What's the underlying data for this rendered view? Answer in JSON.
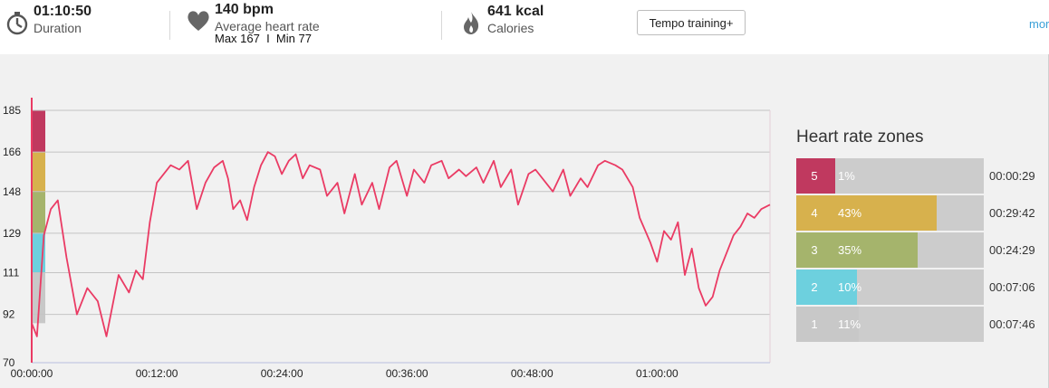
{
  "summary": {
    "duration": {
      "value": "01:10:50",
      "label": "Duration",
      "icon": "stopwatch-icon"
    },
    "heart_rate": {
      "value": "140 bpm",
      "label": "Average heart rate",
      "minmax": "Max 167  I  Min 77",
      "icon": "heart-icon"
    },
    "calories": {
      "value": "641 kcal",
      "label": "Calories",
      "icon": "flame-icon"
    },
    "training_button": "Tempo training+",
    "more_link": "mor"
  },
  "chart_data": {
    "type": "line",
    "xlabel": "",
    "ylabel": "",
    "y_ticks": [
      "185",
      "166",
      "148",
      "129",
      "111",
      "92",
      "70"
    ],
    "x_ticks": [
      "00:00:00",
      "00:12:00",
      "00:24:00",
      "00:36:00",
      "00:48:00",
      "01:00:00"
    ],
    "xlim": [
      0,
      4250
    ],
    "ylim": [
      70,
      185
    ],
    "grid": true,
    "line_color": "#ea3b64",
    "zone_band_colors": [
      "#c8c8c8",
      "#6dd0de",
      "#a5b46c",
      "#d7b14d",
      "#c0395f"
    ],
    "series": [
      {
        "x": [
          0,
          30,
          70,
          110,
          150,
          200,
          260,
          320,
          380,
          430,
          500,
          560,
          600,
          640,
          680,
          720,
          760,
          800,
          850,
          900,
          950,
          1000,
          1050,
          1100,
          1130,
          1160,
          1200,
          1240,
          1280,
          1320,
          1360,
          1400,
          1440,
          1480,
          1520,
          1560,
          1600,
          1660,
          1700,
          1760,
          1800,
          1860,
          1900,
          1960,
          2000,
          2060,
          2100,
          2160,
          2200,
          2260,
          2300,
          2360,
          2400,
          2460,
          2500,
          2560,
          2600,
          2660,
          2700,
          2760,
          2800,
          2860,
          2900,
          2960,
          3000,
          3060,
          3100,
          3160,
          3200,
          3260,
          3300,
          3360,
          3400,
          3460,
          3500,
          3560,
          3600,
          3640,
          3680,
          3720,
          3760,
          3800,
          3840,
          3880,
          3920,
          3960,
          4000,
          4040,
          4080,
          4120,
          4160,
          4200,
          4250
        ],
        "values": [
          88,
          82,
          128,
          140,
          144,
          118,
          92,
          104,
          98,
          82,
          110,
          102,
          112,
          108,
          134,
          152,
          156,
          160,
          158,
          162,
          140,
          152,
          159,
          162,
          154,
          140,
          144,
          135,
          150,
          160,
          166,
          164,
          156,
          162,
          165,
          154,
          160,
          158,
          146,
          152,
          138,
          156,
          142,
          152,
          140,
          159,
          162,
          146,
          158,
          152,
          160,
          162,
          154,
          158,
          155,
          159,
          152,
          162,
          150,
          158,
          142,
          156,
          158,
          152,
          148,
          158,
          146,
          154,
          150,
          160,
          162,
          160,
          158,
          150,
          136,
          125,
          116,
          130,
          126,
          134,
          110,
          122,
          104,
          96,
          100,
          112,
          120,
          128,
          132,
          138,
          136,
          140,
          142
        ]
      }
    ]
  },
  "zones": {
    "title": "Heart rate zones",
    "items": [
      {
        "num": "5",
        "pct": "1%",
        "fraction": 0.01,
        "time": "00:00:29",
        "color": "#c0395f"
      },
      {
        "num": "4",
        "pct": "43%",
        "fraction": 0.43,
        "time": "00:29:42",
        "color": "#d7b14d"
      },
      {
        "num": "3",
        "pct": "35%",
        "fraction": 0.35,
        "time": "00:24:29",
        "color": "#a5b46c"
      },
      {
        "num": "2",
        "pct": "10%",
        "fraction": 0.1,
        "time": "00:07:06",
        "color": "#6dd0de"
      },
      {
        "num": "1",
        "pct": "11%",
        "fraction": 0.11,
        "time": "00:07:46",
        "color": "#c8c8c8"
      }
    ]
  }
}
